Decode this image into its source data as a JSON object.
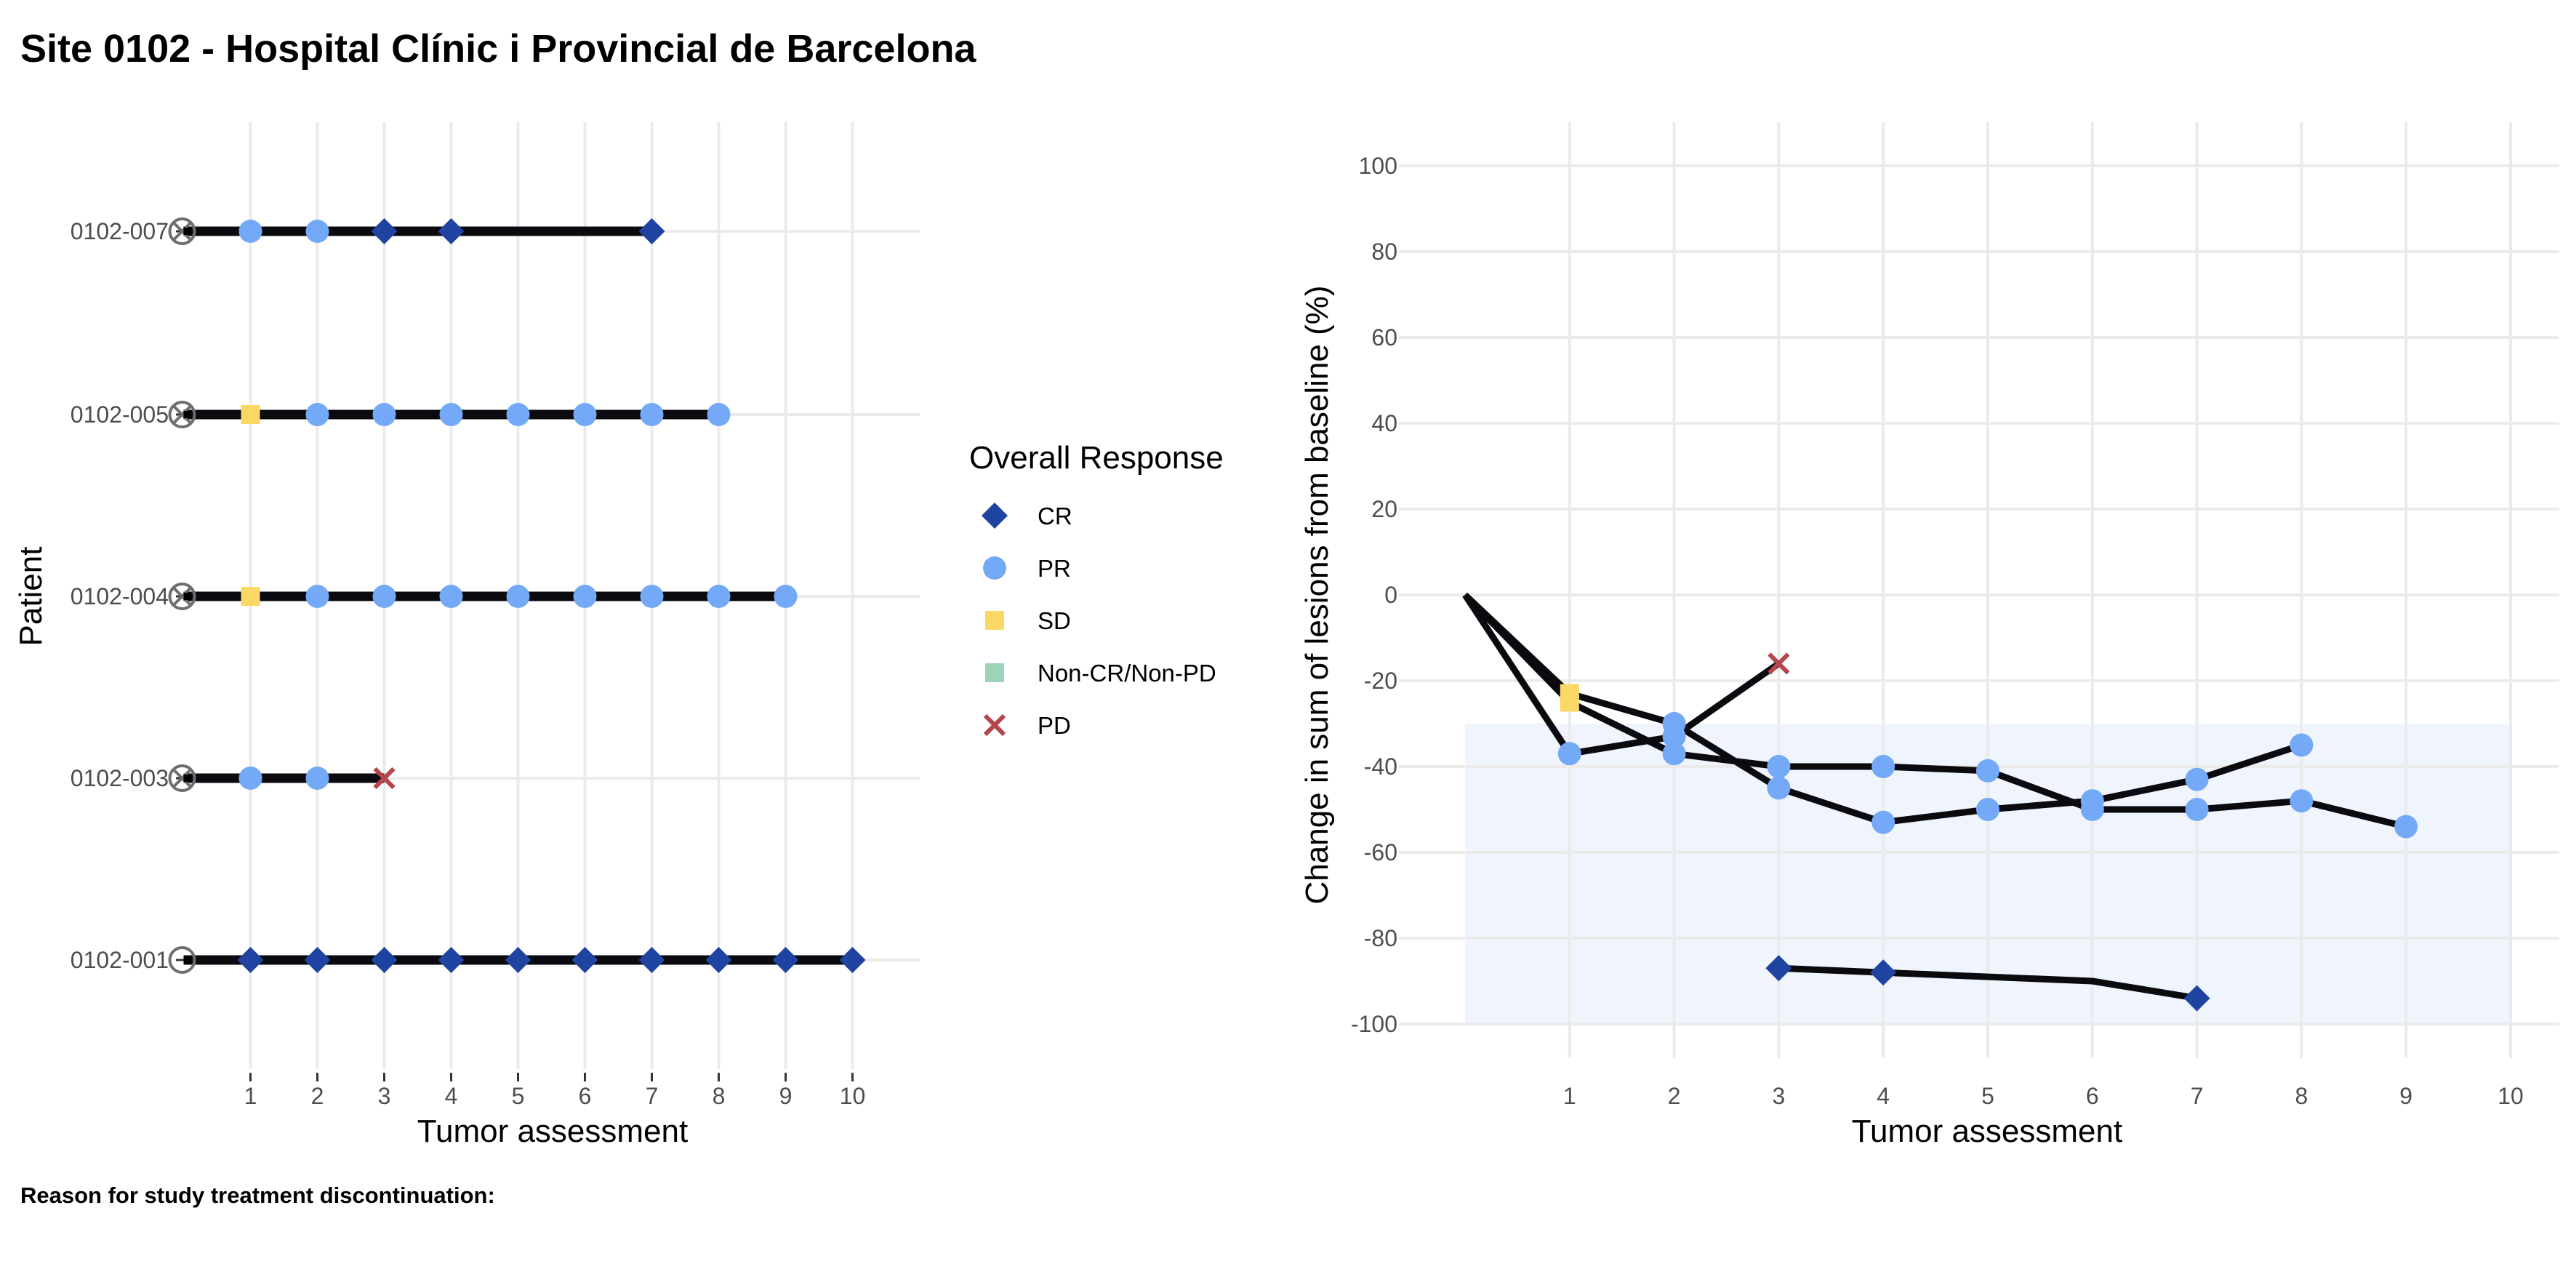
{
  "title": "Site 0102 - Hospital Clínic i Provincial de Barcelona",
  "footnote": "Reason for study treatment discontinuation:",
  "colors": {
    "CR": "#1f43a0",
    "PR": "#74a9f7",
    "SD": "#fbd865",
    "Non-CR/Non-PD": "#9dd3b9",
    "PD": "#b5464b",
    "baseline_marker": "#6e6e6e",
    "line": "#0a0a0f",
    "band": "#eff4fd",
    "grid": "#ebebeb"
  },
  "legend": {
    "title": "Overall Response",
    "items": [
      {
        "label": "CR",
        "shape": "diamond",
        "icon": "diamond-icon"
      },
      {
        "label": "PR",
        "shape": "circle",
        "icon": "circle-icon"
      },
      {
        "label": "SD",
        "shape": "square",
        "icon": "square-icon"
      },
      {
        "label": "Non-CR/Non-PD",
        "shape": "square",
        "icon": "square-icon"
      },
      {
        "label": "PD",
        "shape": "cross",
        "icon": "cross-icon"
      }
    ]
  },
  "chart_data": [
    {
      "type": "scatter",
      "subtype": "swimmer",
      "xlabel": "Tumor assessment",
      "ylabel": "Patient",
      "x_ticks": [
        1,
        2,
        3,
        4,
        5,
        6,
        7,
        8,
        9,
        10
      ],
      "grid": true,
      "patients": [
        {
          "id": "0102-007",
          "line_end": 7,
          "baseline_marker": "circle-cross",
          "points": [
            {
              "x": 1,
              "r": "PR"
            },
            {
              "x": 2,
              "r": "PR"
            },
            {
              "x": 3,
              "r": "CR"
            },
            {
              "x": 4,
              "r": "CR"
            },
            {
              "x": 7,
              "r": "CR"
            }
          ]
        },
        {
          "id": "0102-005",
          "line_end": 8,
          "baseline_marker": "circle-cross",
          "points": [
            {
              "x": 1,
              "r": "SD"
            },
            {
              "x": 2,
              "r": "PR"
            },
            {
              "x": 3,
              "r": "PR"
            },
            {
              "x": 4,
              "r": "PR"
            },
            {
              "x": 5,
              "r": "PR"
            },
            {
              "x": 6,
              "r": "PR"
            },
            {
              "x": 7,
              "r": "PR"
            },
            {
              "x": 8,
              "r": "PR"
            }
          ]
        },
        {
          "id": "0102-004",
          "line_end": 9,
          "baseline_marker": "circle-cross",
          "points": [
            {
              "x": 1,
              "r": "SD"
            },
            {
              "x": 2,
              "r": "PR"
            },
            {
              "x": 3,
              "r": "PR"
            },
            {
              "x": 4,
              "r": "PR"
            },
            {
              "x": 5,
              "r": "PR"
            },
            {
              "x": 6,
              "r": "PR"
            },
            {
              "x": 7,
              "r": "PR"
            },
            {
              "x": 8,
              "r": "PR"
            },
            {
              "x": 9,
              "r": "PR"
            }
          ]
        },
        {
          "id": "0102-003",
          "line_end": 3,
          "baseline_marker": "circle-cross",
          "points": [
            {
              "x": 1,
              "r": "PR"
            },
            {
              "x": 2,
              "r": "PR"
            },
            {
              "x": 3,
              "r": "PD"
            }
          ]
        },
        {
          "id": "0102-001",
          "line_end": 10,
          "baseline_marker": "circle",
          "points": [
            {
              "x": 1,
              "r": "CR"
            },
            {
              "x": 2,
              "r": "CR"
            },
            {
              "x": 3,
              "r": "CR"
            },
            {
              "x": 4,
              "r": "CR"
            },
            {
              "x": 5,
              "r": "CR"
            },
            {
              "x": 6,
              "r": "CR"
            },
            {
              "x": 7,
              "r": "CR"
            },
            {
              "x": 8,
              "r": "CR"
            },
            {
              "x": 9,
              "r": "CR"
            },
            {
              "x": 10,
              "r": "CR"
            }
          ]
        }
      ]
    },
    {
      "type": "line",
      "subtype": "spider",
      "xlabel": "Tumor assessment",
      "ylabel": "Change in sum of lesions from baseline (%)",
      "x_ticks": [
        1,
        2,
        3,
        4,
        5,
        6,
        7,
        8,
        9,
        10
      ],
      "y_ticks": [
        100,
        80,
        60,
        40,
        20,
        0,
        -20,
        -40,
        -60,
        -80,
        -100
      ],
      "xlim": [
        0,
        10
      ],
      "ylim": [
        -100,
        100
      ],
      "grid": true,
      "shaded_band": {
        "x": [
          0,
          10
        ],
        "y": [
          -100,
          -30
        ]
      },
      "series": [
        {
          "points": [
            {
              "x": 0,
              "y": 0
            },
            {
              "x": 1,
              "y": -23,
              "r": "SD"
            },
            {
              "x": 2,
              "y": -30,
              "r": "PR"
            },
            {
              "x": 3,
              "y": -45,
              "r": "PR"
            },
            {
              "x": 4,
              "y": -53,
              "r": "PR"
            },
            {
              "x": 5,
              "y": -50,
              "r": "PR"
            },
            {
              "x": 6,
              "y": -48,
              "r": "PR"
            },
            {
              "x": 7,
              "y": -43,
              "r": "PR"
            },
            {
              "x": 8,
              "y": -35,
              "r": "PR"
            }
          ]
        },
        {
          "points": [
            {
              "x": 0,
              "y": 0
            },
            {
              "x": 1,
              "y": -25,
              "r": "SD"
            },
            {
              "x": 2,
              "y": -37,
              "r": "PR"
            },
            {
              "x": 3,
              "y": -40,
              "r": "PR"
            },
            {
              "x": 4,
              "y": -40,
              "r": "PR"
            },
            {
              "x": 5,
              "y": -41,
              "r": "PR"
            },
            {
              "x": 6,
              "y": -50,
              "r": "PR"
            },
            {
              "x": 7,
              "y": -50,
              "r": "PR"
            },
            {
              "x": 8,
              "y": -48,
              "r": "PR"
            },
            {
              "x": 9,
              "y": -54,
              "r": "PR"
            }
          ]
        },
        {
          "points": [
            {
              "x": 0,
              "y": 0
            },
            {
              "x": 1,
              "y": -37,
              "r": "PR"
            },
            {
              "x": 2,
              "y": -33,
              "r": "PR"
            },
            {
              "x": 3,
              "y": -16,
              "r": "PD"
            }
          ]
        },
        {
          "points": [
            {
              "x": 3,
              "y": -87,
              "r": "CR"
            },
            {
              "x": 4,
              "y": -88,
              "r": "CR"
            },
            {
              "x": 6,
              "y": -90
            },
            {
              "x": 7,
              "y": -94,
              "r": "CR"
            }
          ]
        }
      ]
    }
  ]
}
